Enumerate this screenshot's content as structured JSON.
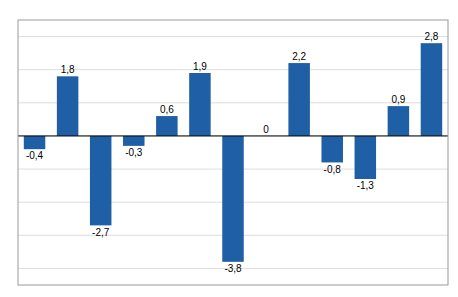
{
  "chart_data": {
    "type": "bar",
    "categories": [
      null,
      null,
      null,
      null,
      null,
      null,
      null,
      null,
      null,
      null,
      null,
      null,
      null
    ],
    "values": [
      -0.4,
      1.8,
      -2.7,
      -0.3,
      0.6,
      1.9,
      -3.8,
      0.0,
      2.2,
      -0.8,
      -1.3,
      0.9,
      2.8
    ],
    "value_labels": [
      "-0,4",
      "1,8",
      "-2,7",
      "-0,3",
      "0,6",
      "1,9",
      "-3,8",
      "0",
      "2,2",
      "-0,8",
      "-1,3",
      "0,9",
      "2,8"
    ],
    "color": "#1F5FA6",
    "ylim": [
      -4.5,
      3.5
    ],
    "yticks": [
      -4,
      -3,
      -2,
      -1,
      0,
      1,
      2,
      3
    ],
    "grid": true,
    "data_labels": true,
    "tick_labels": false
  }
}
